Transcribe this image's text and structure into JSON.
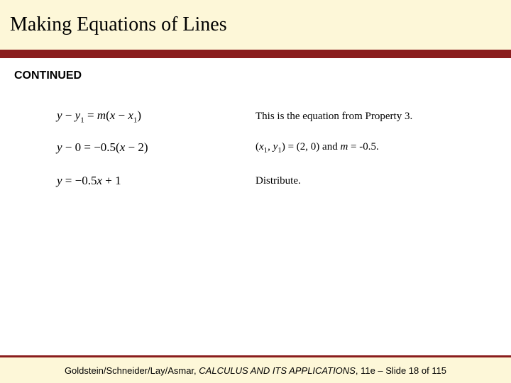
{
  "colors": {
    "title_band_bg": "#fdf7d8",
    "red_rule": "#8a1d1d",
    "footer_band_bg": "#fdf7d8",
    "page_bg": "#ffffff",
    "text": "#000000"
  },
  "typography": {
    "title_fontsize_pt": 28,
    "body_fontsize_pt": 15,
    "equation_fontsize_pt": 17,
    "continued_fontsize_pt": 16,
    "footer_fontsize_pt": 13,
    "title_font": "Times New Roman",
    "body_font": "Times New Roman",
    "continued_font": "Arial",
    "footer_font": "Arial"
  },
  "title": "Making Equations of Lines",
  "continued_label": "CONTINUED",
  "steps": [
    {
      "equation_plain": "y − y1 = m(x − x1)",
      "explanation": "This is the equation from Property 3."
    },
    {
      "equation_plain": "y − 0 = −0.5(x − 2)",
      "explanation_plain": "(x1, y1) = (2, 0) and m = -0.5."
    },
    {
      "equation_plain": "y = −0.5x + 1",
      "explanation": "Distribute."
    }
  ],
  "footer": {
    "authors": "Goldstein/Schneider/Lay/Asmar",
    "book_title": "CALCULUS AND ITS APPLICATIONS",
    "edition_slide": "11e – Slide 18 of 115"
  }
}
